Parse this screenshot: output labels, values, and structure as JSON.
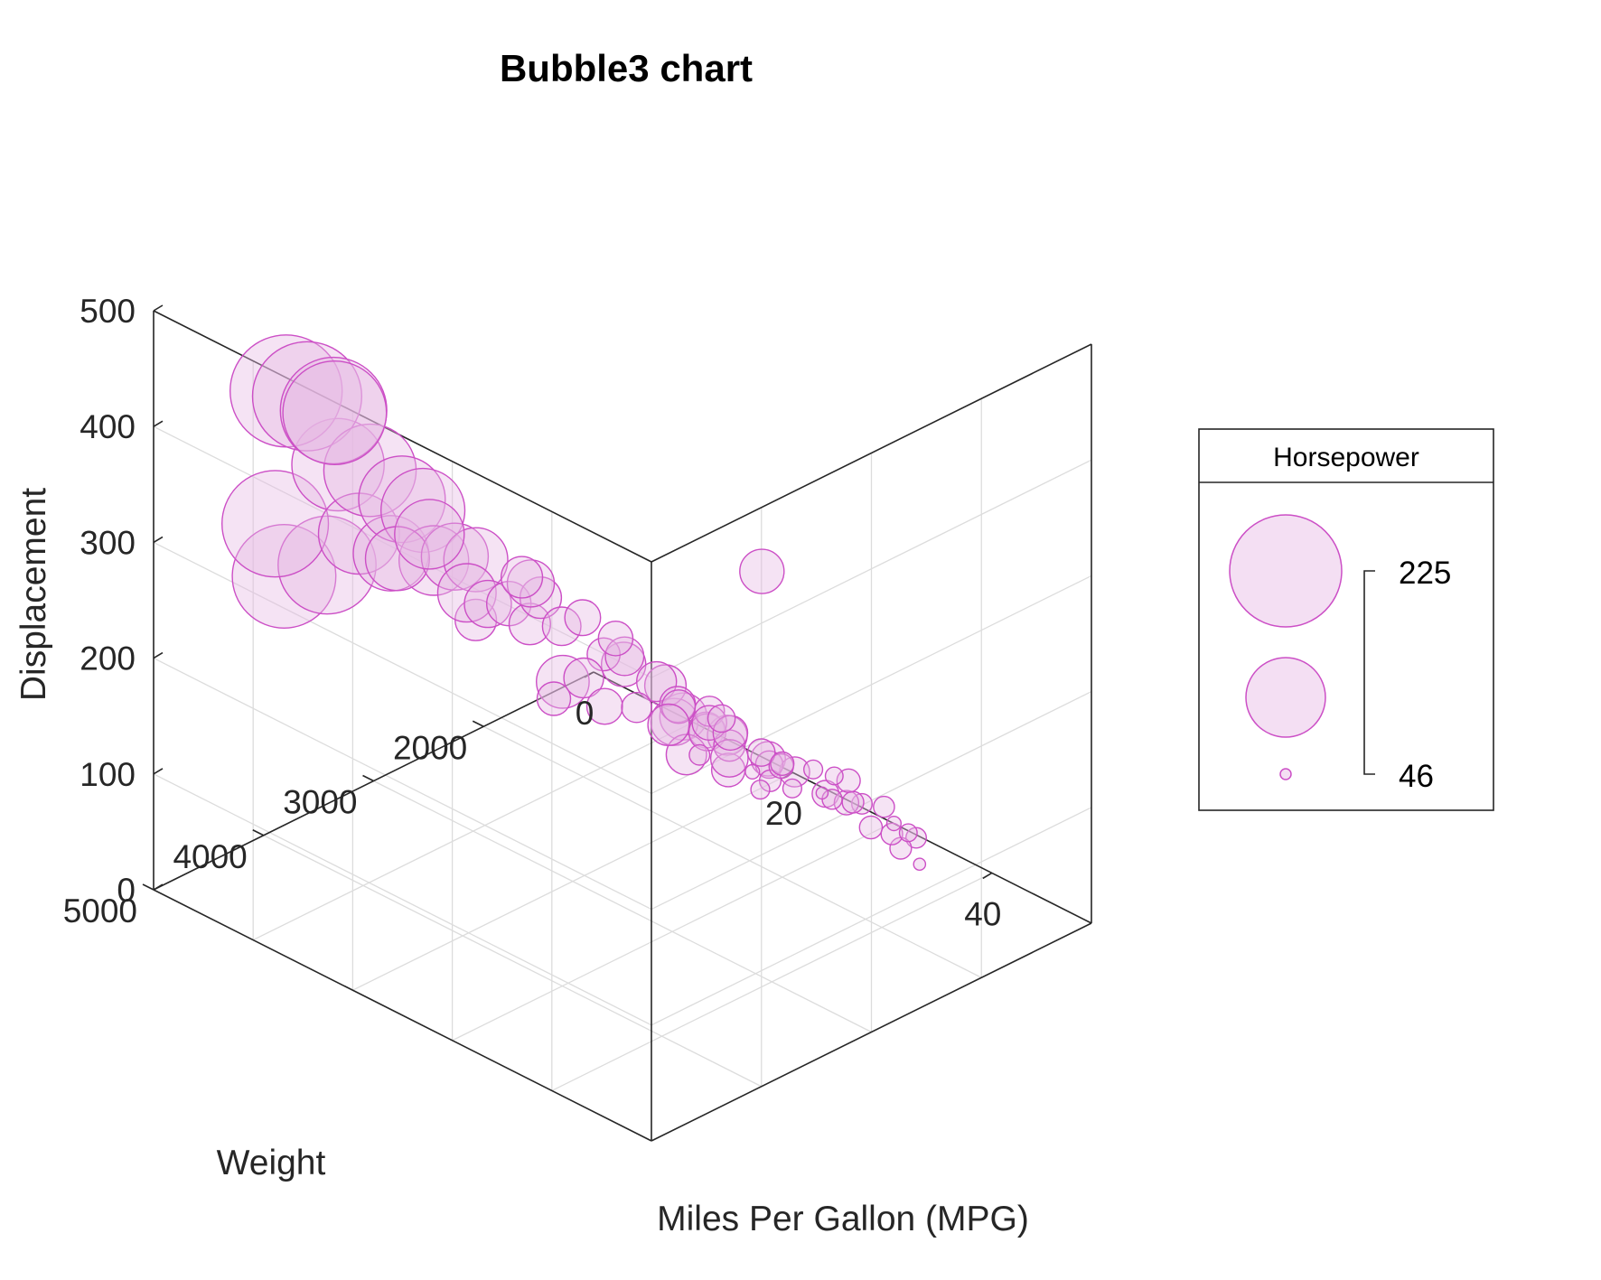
{
  "chart_data": {
    "type": "scatter",
    "subtype": "bubble3",
    "title": "Bubble3 chart",
    "xlabel": "Miles Per Gallon (MPG)",
    "ylabel": "Weight",
    "zlabel": "Displacement",
    "xlim": [
      0,
      50
    ],
    "ylim": [
      1000,
      5000
    ],
    "zlim": [
      0,
      500
    ],
    "xticks": [
      "0",
      "20",
      "40"
    ],
    "yticks": [
      "5000",
      "4000",
      "3000",
      "2000"
    ],
    "zticks": [
      "0",
      "100",
      "200",
      "300",
      "400",
      "500"
    ],
    "grid": true,
    "colors": {
      "marker_fill": "#e7b8e4",
      "marker_edge": "#cc4fc6",
      "axis": "#262626",
      "grid": "#dcdcdc"
    },
    "legend": {
      "title": "Horsepower",
      "placement": "right",
      "max_label": "225",
      "min_label": "46",
      "size_values": [
        225,
        140,
        46
      ]
    },
    "points_columns": [
      "mpg",
      "weight",
      "displacement",
      "horsepower"
    ],
    "points": [
      [
        10,
        4700,
        460,
        225
      ],
      [
        11,
        4600,
        455,
        220
      ],
      [
        12,
        4450,
        440,
        215
      ],
      [
        11,
        4350,
        429,
        210
      ],
      [
        13,
        4500,
        400,
        190
      ],
      [
        14,
        4300,
        390,
        190
      ],
      [
        15,
        4100,
        360,
        180
      ],
      [
        16,
        4000,
        350,
        175
      ],
      [
        10,
        4800,
        350,
        215
      ],
      [
        12,
        4900,
        318,
        210
      ],
      [
        13,
        4600,
        318,
        200
      ],
      [
        14,
        4400,
        340,
        170
      ],
      [
        15,
        4200,
        318,
        160
      ],
      [
        16,
        3900,
        302,
        150
      ],
      [
        17,
        3800,
        305,
        145
      ],
      [
        15,
        3850,
        318,
        150
      ],
      [
        14,
        4050,
        302,
        140
      ],
      [
        18,
        3700,
        302,
        140
      ],
      [
        16,
        3600,
        260,
        130
      ],
      [
        17,
        3500,
        250,
        110
      ],
      [
        18,
        3400,
        250,
        105
      ],
      [
        19,
        3300,
        232,
        100
      ],
      [
        18,
        3200,
        258,
        110
      ],
      [
        20,
        3100,
        225,
        95
      ],
      [
        21,
        3000,
        232,
        90
      ],
      [
        19,
        3200,
        250,
        100
      ],
      [
        22,
        2900,
        200,
        85
      ],
      [
        23,
        2800,
        198,
        95
      ],
      [
        21,
        2700,
        200,
        88
      ],
      [
        24,
        2600,
        171,
        97
      ],
      [
        25,
        2500,
        151,
        90
      ],
      [
        24,
        2400,
        140,
        86
      ],
      [
        26,
        2300,
        140,
        80
      ],
      [
        27,
        2200,
        121,
        88
      ],
      [
        25,
        2100,
        120,
        75
      ],
      [
        28,
        2300,
        119,
        82
      ],
      [
        29,
        2100,
        108,
        75
      ],
      [
        30,
        2000,
        98,
        68
      ],
      [
        31,
        2100,
        105,
        70
      ],
      [
        26,
        2300,
        130,
        88
      ],
      [
        32,
        1900,
        97,
        60
      ],
      [
        33,
        1800,
        91,
        58
      ],
      [
        34,
        2000,
        90,
        48
      ],
      [
        31,
        2200,
        97,
        65
      ],
      [
        29,
        2400,
        107,
        86
      ],
      [
        27,
        2600,
        121,
        98
      ],
      [
        28,
        2500,
        140,
        92
      ],
      [
        30,
        2200,
        85,
        60
      ],
      [
        35,
        2000,
        89,
        62
      ],
      [
        36,
        1900,
        86,
        65
      ],
      [
        37,
        2050,
        97,
        70
      ],
      [
        38,
        2000,
        98,
        63
      ],
      [
        36,
        2150,
        105,
        74
      ],
      [
        34,
        2250,
        120,
        80
      ],
      [
        33,
        2400,
        134,
        88
      ],
      [
        32,
        2300,
        120,
        75
      ],
      [
        30,
        2500,
        146,
        97
      ],
      [
        29,
        2600,
        151,
        90
      ],
      [
        28,
        2800,
        163,
        110
      ],
      [
        30,
        2900,
        181,
        110
      ],
      [
        40,
        2100,
        91,
        67
      ],
      [
        41,
        2000,
        85,
        65
      ],
      [
        43,
        2100,
        86,
        65
      ],
      [
        44,
        2050,
        97,
        63
      ],
      [
        46,
        2200,
        90,
        48
      ],
      [
        39,
        1800,
        76,
        52
      ],
      [
        41,
        1850,
        79,
        58
      ],
      [
        35,
        1850,
        98,
        68
      ],
      [
        38,
        1800,
        86,
        64
      ],
      [
        22,
        2600,
        140,
        80
      ],
      [
        21,
        2800,
        146,
        90
      ],
      [
        19,
        3000,
        168,
        120
      ],
      [
        20,
        2900,
        171,
        97
      ],
      [
        24,
        2900,
        200,
        105
      ],
      [
        26,
        2700,
        181,
        100
      ],
      [
        39,
        3000,
        350,
        105
      ],
      [
        18,
        3700,
        250,
        100
      ],
      [
        23,
        2400,
        120,
        100
      ],
      [
        17,
        2900,
        140,
        86
      ],
      [
        16,
        3100,
        250,
        100
      ],
      [
        28,
        2300,
        108,
        93
      ],
      [
        31,
        2000,
        81,
        60
      ],
      [
        27,
        2000,
        78,
        52
      ],
      [
        25,
        2300,
        98,
        63
      ]
    ]
  }
}
